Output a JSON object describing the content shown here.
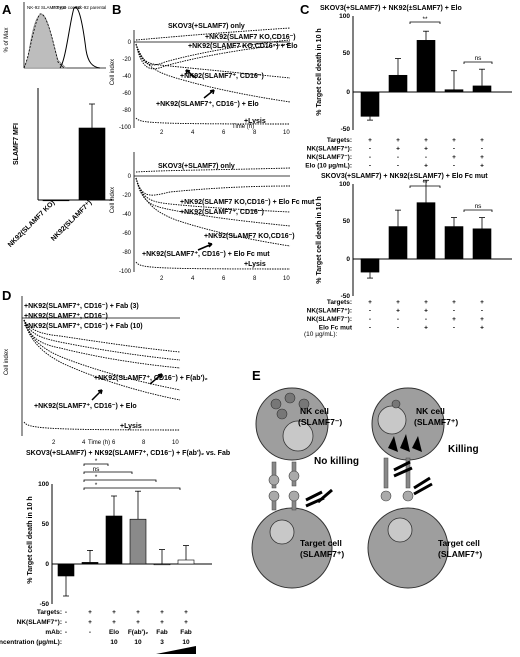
{
  "panels": {
    "A": {
      "letter": "A",
      "histogram": {
        "legend_ko": "NK-92 SLAMF7 KO",
        "legend_iso": "Isotype control",
        "legend_parental": "NK-92 parental",
        "ylabel": "% of Max"
      },
      "mfi_chart": {
        "ylabel": "SLAMF7 MFI",
        "categories": [
          "NK92(SLAMF7 KO)",
          "NK92(SLAMF7⁺)"
        ]
      }
    },
    "B": {
      "letter": "B",
      "top": {
        "ylabel": "Cell index",
        "xlabel": "Time (h)",
        "yticks": [
          "0",
          "-20",
          "-40",
          "-60",
          "-80",
          "-100"
        ],
        "xticks": [
          "2",
          "4",
          "6",
          "8",
          "10"
        ],
        "curves": [
          "SKOV3(+SLAMF7) only",
          "+NK92(SLAMF7 KO,CD16⁻)",
          "+NK92(SLAMF7 KO,CD16⁻) + Elo",
          "+NK92(SLAMF7⁺, CD16⁻)",
          "+NK92(SLAMF7⁺, CD16⁻) + Elo",
          "+Lysis"
        ]
      },
      "bottom": {
        "ylabel": "Cell index",
        "xlabel": "Time (h)",
        "yticks": [
          "0",
          "-20",
          "-40",
          "-60",
          "-80",
          "-100"
        ],
        "xticks": [
          "2",
          "4",
          "6",
          "8",
          "10"
        ],
        "curves": [
          "SKOV3(+SLAMF7) only",
          "+NK92(SLAMF7 KO,CD16⁻) + Elo Fc mut",
          "+NK92(SLAMF7⁺, CD16⁻)",
          "+NK92(SLAMF7 KO,CD16⁻)",
          "+NK92(SLAMF7⁺, CD16⁻) + Elo Fc mut",
          "+Lysis"
        ]
      }
    },
    "C": {
      "letter": "C",
      "top": {
        "title": "SKOV3(+SLAMF7) + NK92(±SLAMF7) + Elo",
        "ylabel": "% Target cell death in 10 h",
        "yticks": [
          "100",
          "50",
          "0",
          "-50"
        ],
        "sig": [
          "**",
          "ns"
        ],
        "rows": [
          {
            "label": "Targets:",
            "marks": [
              "+",
              "+",
              "+",
              "+",
              "+"
            ]
          },
          {
            "label": "NK(SLAMF7⁺):",
            "marks": [
              "-",
              "+",
              "+",
              "-",
              "-"
            ]
          },
          {
            "label": "NK(SLAMF7⁻):",
            "marks": [
              "-",
              "-",
              "-",
              "+",
              "+"
            ]
          },
          {
            "label": "Elo (10 µg/mL):",
            "marks": [
              "-",
              "-",
              "+",
              "-",
              "+"
            ]
          }
        ]
      },
      "bottom": {
        "title": "SKOV3(+SLAMF7) + NK92(±SLAMF7) + Elo Fc mut",
        "ylabel": "% Target cell death in 10 h",
        "yticks": [
          "100",
          "50",
          "0",
          "-50"
        ],
        "sig": [
          "**",
          "ns"
        ],
        "rows": [
          {
            "label": "Targets:",
            "marks": [
              "+",
              "+",
              "+",
              "+",
              "+"
            ]
          },
          {
            "label": "NK(SLAMF7⁺):",
            "marks": [
              "-",
              "+",
              "+",
              "-",
              "-"
            ]
          },
          {
            "label": "NK(SLAMF7⁻):",
            "marks": [
              "-",
              "-",
              "-",
              "+",
              "+"
            ]
          },
          {
            "label": "Elo Fc mut",
            "marks": [
              "-",
              "-",
              "+",
              "-",
              "+"
            ]
          }
        ],
        "unit_row": "(10 µg/mL):"
      }
    },
    "D": {
      "letter": "D",
      "curves_chart": {
        "ylabel": "Cell index",
        "xlabel": "Time (h)",
        "yticks": [
          "0",
          "-20",
          "-40",
          "-60",
          "-80",
          "-100"
        ],
        "xticks": [
          "2",
          "4",
          "6",
          "8",
          "10"
        ],
        "curves": [
          "+NK92(SLAMF7⁺, CD16⁻) + Fab (3)",
          "+NK92(SLAMF7⁺, CD16⁻)",
          "+NK92(SLAMF7⁺, CD16⁻) + Fab (10)",
          "+NK92(SLAMF7⁺, CD16⁻) + F(ab')₂",
          "+NK92(SLAMF7⁺, CD16⁻) + Elo",
          "+Lysis"
        ]
      },
      "bar_chart": {
        "title": "SKOV3(+SLAMF7) + NK92(SLAMF7⁺, CD16⁻) + F(ab')₂ vs. Fab",
        "ylabel": "% Target cell death in 10 h",
        "yticks": [
          "100",
          "50",
          "0",
          "-50"
        ],
        "sig": [
          "*",
          "ns",
          "*",
          "*"
        ],
        "rows": [
          {
            "label": "Targets:",
            "marks": [
              "-",
              "+",
              "+",
              "+",
              "+",
              "+"
            ]
          },
          {
            "label": "NK(SLAMF7⁺):",
            "marks": [
              "-",
              "+",
              "+",
              "+",
              "+",
              "+"
            ]
          },
          {
            "label": "mAb:",
            "marks": [
              "-",
              "-",
              "Elo",
              "F(ab')₂",
              "Fab",
              "Fab"
            ]
          },
          {
            "label": "Concentration (µg/mL):",
            "marks": [
              "",
              "",
              "10",
              "10",
              "3",
              "10"
            ]
          }
        ]
      }
    },
    "E": {
      "letter": "E",
      "left": {
        "nk_cell": "NK cell",
        "nk_type": "(SLAMF7⁻)",
        "outcome": "No killing",
        "target": "Target cell",
        "target_type": "(SLAMF7⁺)"
      },
      "right": {
        "nk_cell": "NK cell",
        "nk_type": "(SLAMF7⁺)",
        "outcome": "Killing",
        "target": "Target cell",
        "target_type": "(SLAMF7⁺)"
      }
    }
  },
  "chart_data": [
    {
      "type": "bar",
      "panel": "A",
      "ylabel": "SLAMF7 MFI",
      "categories": [
        "NK92(SLAMF7 KO)",
        "NK92(SLAMF7⁺)"
      ],
      "values": [
        0,
        9
      ],
      "errors": [
        0,
        3
      ],
      "ylim": [
        0,
        14
      ]
    },
    {
      "type": "bar",
      "panel": "C-top",
      "title": "SKOV3(+SLAMF7) + NK92(±SLAMF7) + Elo",
      "ylabel": "% Target cell death in 10 h",
      "values": [
        -32,
        22,
        68,
        3,
        8
      ],
      "errors": [
        5,
        22,
        12,
        25,
        22
      ],
      "ylim": [
        -50,
        100
      ]
    },
    {
      "type": "bar",
      "panel": "C-bottom",
      "title": "SKOV3(+SLAMF7) + NK92(±SLAMF7) + Elo Fc mut",
      "ylabel": "% Target cell death in 10 h",
      "values": [
        -18,
        43,
        75,
        43,
        40
      ],
      "errors": [
        8,
        22,
        30,
        12,
        15
      ],
      "ylim": [
        -50,
        100
      ]
    },
    {
      "type": "bar",
      "panel": "D",
      "title": "SKOV3(+SLAMF7) + NK92(SLAMF7⁺, CD16⁻) + F(ab')₂ vs. Fab",
      "ylabel": "% Target cell death in 10 h",
      "values": [
        -15,
        2,
        60,
        56,
        0,
        5
      ],
      "errors": [
        25,
        15,
        25,
        35,
        18,
        18
      ],
      "ylim": [
        -50,
        100
      ]
    }
  ]
}
